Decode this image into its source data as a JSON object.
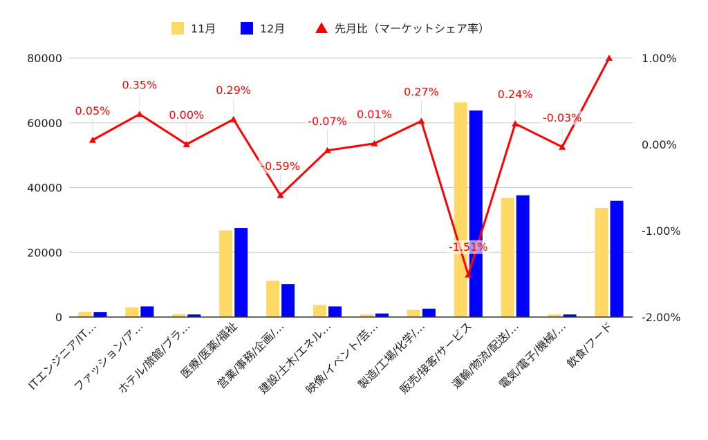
{
  "chart_data": {
    "type": "bar",
    "categories": [
      "ITエンジニア/IT…",
      "ファッション/ア…",
      "ホテル/旅館/ブラ…",
      "医療/医薬/福祉",
      "営業/事務/企画/…",
      "建設/土木/エネル…",
      "映像/イベント/芸…",
      "製造/工場/化学/…",
      "販売/接客/サービス",
      "運輸/物流/配送/…",
      "電気/電子/機械/…",
      "飲食/フード"
    ],
    "series": [
      {
        "name": "11月",
        "kind": "bar",
        "axis": "left",
        "color": "#FFD966",
        "values": [
          1600,
          3000,
          900,
          26800,
          11200,
          3700,
          800,
          2200,
          66300,
          36800,
          800,
          33700
        ]
      },
      {
        "name": "12月",
        "kind": "bar",
        "axis": "left",
        "color": "#0000FF",
        "values": [
          1500,
          3300,
          800,
          27500,
          10200,
          3300,
          1100,
          2600,
          63800,
          37600,
          800,
          35900
        ]
      },
      {
        "name": "先月比（マーケットシェア率）",
        "kind": "line",
        "axis": "right",
        "color": "#FF0000",
        "values": [
          0.05,
          0.35,
          0.0,
          0.29,
          -0.59,
          -0.07,
          0.01,
          0.27,
          -1.51,
          0.24,
          -0.03,
          1.0
        ],
        "labels": [
          "0.05%",
          "0.35%",
          "0.00%",
          "0.29%",
          "-0.59%",
          "-0.07%",
          "0.01%",
          "0.27%",
          "-1.51%",
          "0.24%",
          "-0.03%",
          ""
        ]
      }
    ],
    "y_left": {
      "ylim": [
        0,
        80000
      ],
      "ticks": [
        "0",
        "20000",
        "40000",
        "60000",
        "80000"
      ]
    },
    "y_right": {
      "ylim": [
        -2.0,
        1.0
      ],
      "ticks": [
        "-2.00%",
        "-1.00%",
        "0.00%",
        "1.00%"
      ]
    },
    "grid": true,
    "legend_position": "top-center"
  }
}
